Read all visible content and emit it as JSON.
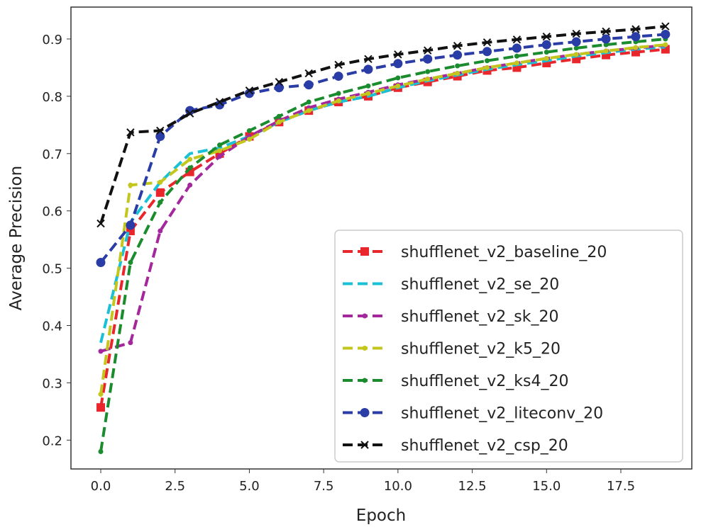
{
  "chart_data": {
    "type": "line",
    "title": "",
    "xlabel": "Epoch",
    "ylabel": "Average Precision",
    "xlim": [
      -0.9,
      19.9
    ],
    "ylim": [
      0.145,
      0.955
    ],
    "xticks": [
      "0.0",
      "2.5",
      "5.0",
      "7.5",
      "10.0",
      "12.5",
      "15.0",
      "17.5"
    ],
    "yticks": [
      "0.2",
      "0.3",
      "0.4",
      "0.5",
      "0.6",
      "0.7",
      "0.8",
      "0.9"
    ],
    "legend_position": "lower-right",
    "grid": false,
    "x": [
      0,
      1,
      2,
      3,
      4,
      5,
      6,
      7,
      8,
      9,
      10,
      11,
      12,
      13,
      14,
      15,
      16,
      17,
      18,
      19
    ],
    "series": [
      {
        "name": "shufflenet_v2_baseline_20",
        "color": "#e8262b",
        "marker": "square",
        "values": [
          0.257,
          0.565,
          0.632,
          0.668,
          0.7,
          0.73,
          0.755,
          0.775,
          0.79,
          0.8,
          0.815,
          0.825,
          0.835,
          0.845,
          0.85,
          0.858,
          0.865,
          0.872,
          0.877,
          0.882
        ]
      },
      {
        "name": "shufflenet_v2_se_20",
        "color": "#19c0d6",
        "marker": "none",
        "values": [
          0.37,
          0.58,
          0.65,
          0.7,
          0.71,
          0.73,
          0.755,
          0.775,
          0.79,
          0.8,
          0.815,
          0.827,
          0.837,
          0.847,
          0.855,
          0.862,
          0.87,
          0.876,
          0.882,
          0.886
        ]
      },
      {
        "name": "shufflenet_v2_sk_20",
        "color": "#a4279c",
        "marker": "dot",
        "values": [
          0.355,
          0.37,
          0.565,
          0.645,
          0.695,
          0.73,
          0.757,
          0.78,
          0.795,
          0.807,
          0.82,
          0.83,
          0.84,
          0.85,
          0.858,
          0.866,
          0.873,
          0.879,
          0.884,
          0.889
        ]
      },
      {
        "name": "shufflenet_v2_k5_20",
        "color": "#c3c71d",
        "marker": "dot",
        "values": [
          0.28,
          0.645,
          0.65,
          0.69,
          0.705,
          0.725,
          0.755,
          0.775,
          0.792,
          0.805,
          0.818,
          0.83,
          0.84,
          0.85,
          0.858,
          0.866,
          0.873,
          0.879,
          0.885,
          0.89
        ]
      },
      {
        "name": "shufflenet_v2_ks4_20",
        "color": "#1a8c2e",
        "marker": "dot",
        "values": [
          0.18,
          0.51,
          0.615,
          0.675,
          0.715,
          0.74,
          0.765,
          0.79,
          0.805,
          0.818,
          0.832,
          0.843,
          0.853,
          0.862,
          0.87,
          0.877,
          0.884,
          0.89,
          0.895,
          0.9
        ]
      },
      {
        "name": "shufflenet_v2_liteconv_20",
        "color": "#2a3ca6",
        "marker": "circle",
        "values": [
          0.51,
          0.575,
          0.73,
          0.775,
          0.785,
          0.805,
          0.815,
          0.82,
          0.835,
          0.847,
          0.857,
          0.865,
          0.872,
          0.878,
          0.884,
          0.89,
          0.895,
          0.9,
          0.904,
          0.908
        ]
      },
      {
        "name": "shufflenet_v2_csp_20",
        "color": "#111111",
        "marker": "x",
        "values": [
          0.578,
          0.737,
          0.74,
          0.77,
          0.79,
          0.81,
          0.825,
          0.84,
          0.855,
          0.865,
          0.873,
          0.88,
          0.888,
          0.894,
          0.899,
          0.904,
          0.909,
          0.913,
          0.917,
          0.922
        ]
      }
    ]
  }
}
